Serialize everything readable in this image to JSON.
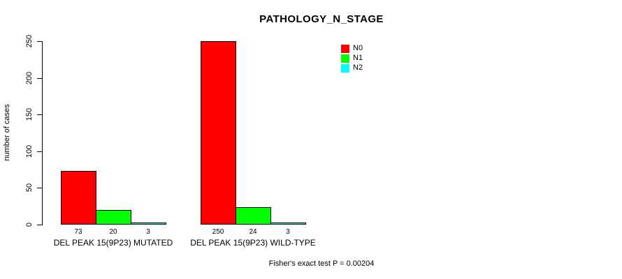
{
  "chart_data": {
    "type": "bar",
    "title": "PATHOLOGY_N_STAGE",
    "xlabel": "",
    "ylabel": "number of cases",
    "categories": [
      "DEL PEAK 15(9P23) MUTATED",
      "DEL PEAK 15(9P23) WILD-TYPE"
    ],
    "series": [
      {
        "name": "N0",
        "color": "#FF0000",
        "values": [
          73,
          250
        ]
      },
      {
        "name": "N1",
        "color": "#00FF00",
        "values": [
          20,
          24
        ]
      },
      {
        "name": "N2",
        "color": "#00FFFF",
        "values": [
          3,
          3
        ]
      }
    ],
    "bar_value_labels": [
      [
        73,
        20,
        3
      ],
      [
        250,
        24,
        3
      ]
    ],
    "yticks": [
      0,
      50,
      100,
      150,
      200,
      250
    ],
    "ylim": [
      0,
      250
    ],
    "grid": false,
    "legend_position": "top-right",
    "annotation": "Fisher's exact test P = 0.00204"
  }
}
